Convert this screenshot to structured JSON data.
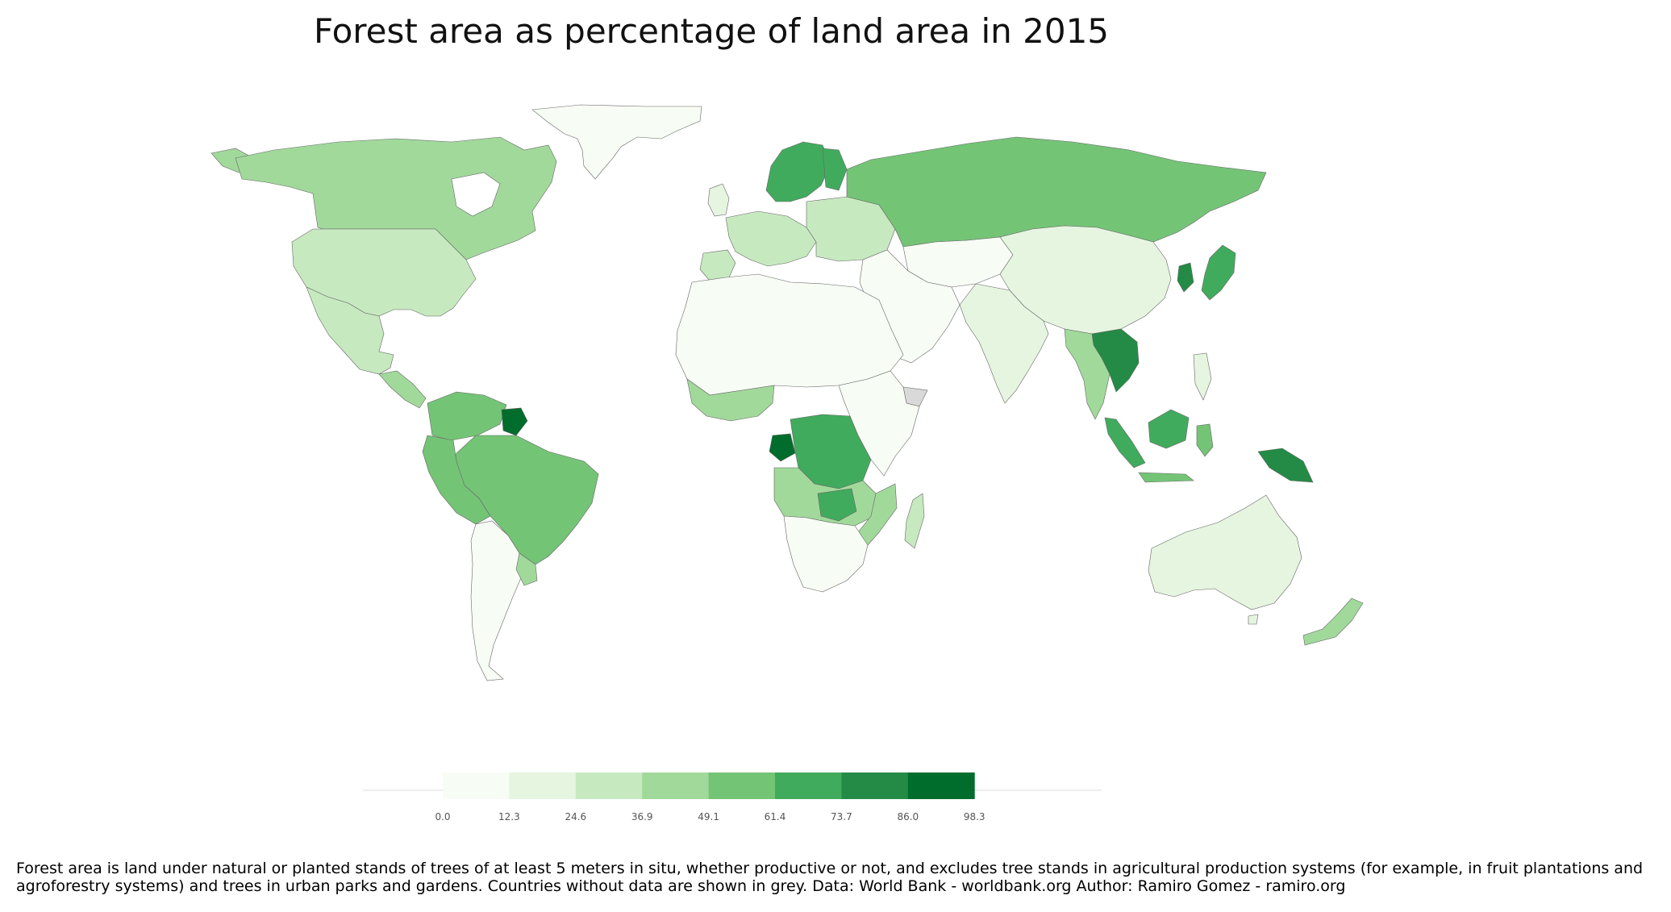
{
  "title": "Forest area as percentage of land area in 2015",
  "caption": "Forest area is land under natural or planted stands of trees of at least 5 meters in situ, whether productive or not, and excludes tree stands in agricultural production systems (for example, in fruit plantations and agroforestry systems) and trees in urban parks and gardens. Countries without data are shown in grey. Data: World Bank - worldbank.org Author: Ramiro Gomez - ramiro.org",
  "legend": {
    "bins": [
      "0.0",
      "12.3",
      "24.6",
      "36.9",
      "49.1",
      "61.4",
      "73.7",
      "86.0",
      "98.3"
    ],
    "colors": [
      "#f7fcf5",
      "#e5f5e0",
      "#c7e9c0",
      "#a1d99b",
      "#74c476",
      "#41ab5d",
      "#238b45",
      "#006d2c",
      "#00441b"
    ]
  },
  "colors": {
    "no_data": "#d9d9d9",
    "border": "#666666"
  }
}
